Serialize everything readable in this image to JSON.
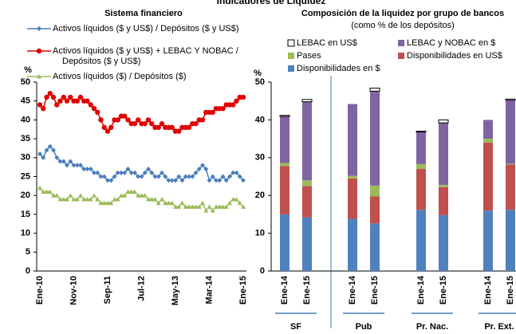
{
  "header": {
    "title": "Indicadores de Liquidez"
  },
  "chart_data": [
    {
      "type": "line",
      "title": "Sistema financiero",
      "y_label": "%",
      "categories": [
        "Ene-10",
        null,
        null,
        null,
        null,
        null,
        null,
        null,
        null,
        null,
        "Nov-10",
        null,
        null,
        null,
        null,
        null,
        null,
        null,
        null,
        null,
        "Sep-11",
        null,
        null,
        null,
        null,
        null,
        null,
        null,
        null,
        null,
        "Jul-12",
        null,
        null,
        null,
        null,
        null,
        null,
        null,
        null,
        null,
        "May-13",
        null,
        null,
        null,
        null,
        null,
        null,
        null,
        null,
        null,
        "Mar-14",
        null,
        null,
        null,
        null,
        null,
        null,
        null,
        null,
        null,
        "Ene-15"
      ],
      "series": [
        {
          "name": "Activos líquidos ($ y US$) / Depósitos ($ y US$)",
          "color": "#4a7ebb",
          "marker": "diamond",
          "values": [
            31,
            30,
            32,
            33,
            32,
            30,
            29,
            29,
            28,
            29,
            28,
            28,
            28,
            27,
            27,
            27,
            26,
            26,
            25,
            25,
            24,
            24,
            25,
            26,
            26,
            26,
            27,
            26,
            26,
            25,
            25,
            26,
            27,
            26,
            25,
            25,
            26,
            25,
            24,
            24,
            24,
            25,
            24,
            25,
            25,
            25,
            26,
            27,
            28,
            27,
            24,
            25,
            24,
            24,
            25,
            24,
            25,
            26,
            26,
            25,
            24
          ]
        },
        {
          "name": "Activos líquidos ($ y US$) + LEBAC Y NOBAC / Depósitos ($ y US$)",
          "color": "#e00000",
          "marker": "circle",
          "values": [
            44,
            43,
            46,
            47,
            46,
            44,
            45,
            46,
            45,
            46,
            45,
            45,
            46,
            45,
            45,
            44,
            43,
            42,
            40,
            38,
            37,
            38,
            40,
            40,
            41,
            41,
            40,
            39,
            39,
            40,
            39,
            39,
            40,
            39,
            38,
            38,
            39,
            38,
            38,
            38,
            37,
            37,
            38,
            38,
            38,
            39,
            39,
            40,
            40,
            42,
            42,
            42,
            43,
            43,
            43,
            44,
            44,
            44,
            45,
            46,
            46
          ]
        },
        {
          "name": "Activos líquidos ($) / Depósitos ($)",
          "color": "#9bbb59",
          "marker": "triangle",
          "values": [
            22,
            21,
            21,
            21,
            20,
            20,
            19,
            19,
            19,
            20,
            19,
            19,
            20,
            19,
            19,
            19,
            20,
            19,
            18,
            18,
            18,
            18,
            19,
            19,
            20,
            20,
            21,
            21,
            21,
            20,
            20,
            20,
            19,
            19,
            19,
            18,
            19,
            18,
            18,
            18,
            17,
            17,
            18,
            17,
            17,
            17,
            17,
            17,
            18,
            16,
            17,
            16,
            17,
            17,
            17,
            17,
            18,
            19,
            19,
            18,
            17
          ]
        }
      ],
      "ylim": [
        0,
        50
      ],
      "yticks": [
        0,
        5,
        10,
        15,
        20,
        25,
        30,
        35,
        40,
        45,
        50
      ]
    },
    {
      "type": "stacked_bar",
      "title": "Composición de la liquidez por grupo de bancos",
      "subtitle": "(como % de los depósitos)",
      "y_label": "%",
      "categories": [
        "Ene-14",
        "Ene-15",
        "Ene-14",
        "Ene-15",
        "Ene-14",
        "Ene-15",
        "Ene-14",
        "Ene-15"
      ],
      "groups": [
        "SF",
        "Pub",
        "Pr. Nac.",
        "Pr. Ext."
      ],
      "series": [
        {
          "name": "Disponibilidades en $",
          "color": "#4f81bd",
          "values": [
            15,
            14.2,
            13.8,
            12.6,
            16.2,
            14.8,
            16,
            16.2
          ]
        },
        {
          "name": "Disponibilidades en US$",
          "color": "#c0504d",
          "values": [
            12.8,
            8.3,
            10.7,
            7.2,
            10.8,
            7.4,
            18,
            12
          ]
        },
        {
          "name": "Pases",
          "color": "#9bbb59",
          "values": [
            0.8,
            1.5,
            0.7,
            2.8,
            1.3,
            0.6,
            1,
            0.2
          ]
        },
        {
          "name": "LEBAC y NOBAC en $",
          "color": "#8064a2",
          "values": [
            12.3,
            20.8,
            19,
            25,
            8.5,
            16.4,
            5,
            16.8
          ]
        },
        {
          "name": "LEBAC en US$",
          "color": "#ffffff",
          "values": [
            0.3,
            0.6,
            0,
            0.8,
            0.2,
            0.8,
            0,
            0.3
          ]
        }
      ],
      "ylim": [
        0,
        50
      ],
      "yticks": [
        0,
        10,
        20,
        30,
        40,
        50
      ]
    }
  ]
}
